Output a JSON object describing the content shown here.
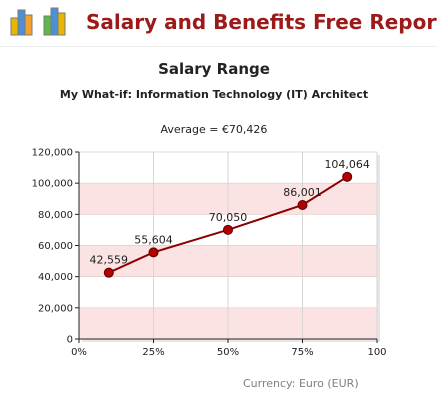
{
  "header": {
    "title": "Salary and Benefits Free Report",
    "logo_icon": "bar-chart-logo-icon"
  },
  "chart_data": {
    "type": "line",
    "title": "Salary Range",
    "subtitle": "My What-if: Information Technology (IT) Architect",
    "average_label": "Average = ",
    "average_value": "€70,426",
    "x": [
      10,
      25,
      50,
      75,
      90
    ],
    "values": [
      42559,
      55604,
      70050,
      86001,
      104064
    ],
    "data_labels": [
      "42,559",
      "55,604",
      "70,050",
      "86,001",
      "104,064"
    ],
    "x_ticks": [
      "0%",
      "25%",
      "50%",
      "75%",
      "100"
    ],
    "x_tick_values": [
      0,
      25,
      50,
      75,
      100
    ],
    "y_ticks": [
      "0",
      "20,000",
      "40,000",
      "60,000",
      "80,000",
      "100,000",
      "120,000"
    ],
    "y_tick_values": [
      0,
      20000,
      40000,
      60000,
      80000,
      100000,
      120000
    ],
    "xlim": [
      0,
      100
    ],
    "ylim": [
      0,
      120000
    ],
    "grid": true,
    "colors": {
      "line": "#8b0000",
      "marker": "#b30000",
      "band": "#fbe3e3",
      "title": "#9c1a1a"
    }
  },
  "footer": {
    "currency": "Currency: Euro (EUR)"
  }
}
